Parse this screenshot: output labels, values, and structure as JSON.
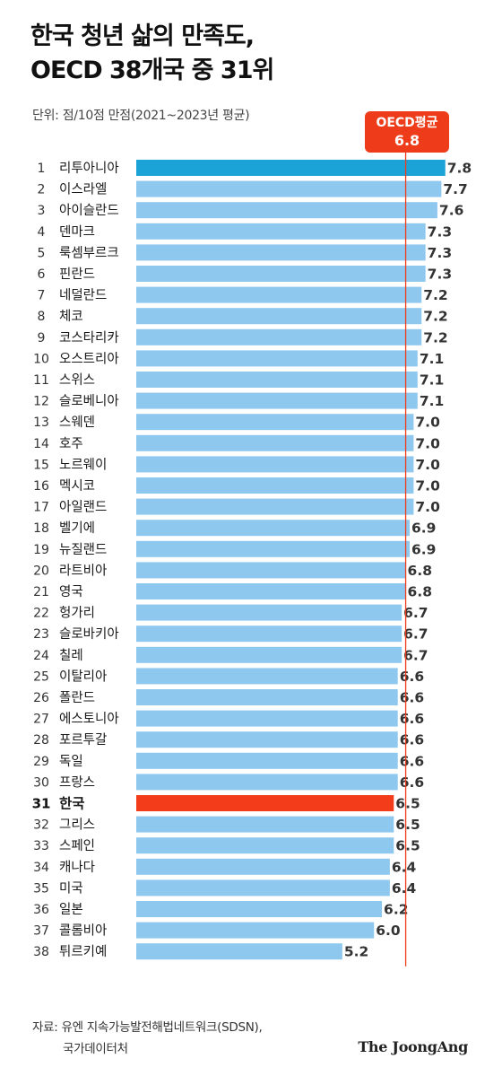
{
  "title": {
    "line1": "한국 청년 삶의 만족도,",
    "line2": "OECD 38개국 중 31위"
  },
  "unit_note": "단위: 점/10점 만점(2021~2023년 평균)",
  "average_badge": {
    "label": "OECD평균",
    "value": "6.8"
  },
  "source": {
    "line1": "자료: 유엔 지속가능발전해법네트워크(SDSN),",
    "line2": "국가데이터처"
  },
  "brand": "The JoongAng",
  "colors": {
    "bar": "#8fc8ef",
    "top_bar": "#1ba3d7",
    "highlight_bar": "#f23c1a",
    "average_line": "#ee3c1a"
  },
  "chart_data": {
    "type": "bar",
    "orientation": "horizontal",
    "average": 6.8,
    "highlight": "한국",
    "categories": [
      "리투아니아",
      "이스라엘",
      "아이슬란드",
      "덴마크",
      "룩셈부르크",
      "핀란드",
      "네덜란드",
      "체코",
      "코스타리카",
      "오스트리아",
      "스위스",
      "슬로베니아",
      "스웨덴",
      "호주",
      "노르웨이",
      "멕시코",
      "아일랜드",
      "벨기에",
      "뉴질랜드",
      "라트비아",
      "영국",
      "헝가리",
      "슬로바키아",
      "칠레",
      "이탈리아",
      "폴란드",
      "에스토니아",
      "포르투갈",
      "독일",
      "프랑스",
      "한국",
      "그리스",
      "스페인",
      "캐나다",
      "미국",
      "일본",
      "콜롬비아",
      "튀르키예"
    ],
    "ranks": [
      "1",
      "2",
      "3",
      "4",
      "5",
      "6",
      "7",
      "8",
      "9",
      "10",
      "11",
      "12",
      "13",
      "14",
      "15",
      "16",
      "17",
      "18",
      "19",
      "20",
      "21",
      "22",
      "23",
      "24",
      "25",
      "26",
      "27",
      "28",
      "29",
      "30",
      "31",
      "32",
      "33",
      "34",
      "35",
      "36",
      "37",
      "38"
    ],
    "values": [
      7.8,
      7.7,
      7.6,
      7.3,
      7.3,
      7.3,
      7.2,
      7.2,
      7.2,
      7.1,
      7.1,
      7.1,
      7.0,
      7.0,
      7.0,
      7.0,
      7.0,
      6.9,
      6.9,
      6.8,
      6.8,
      6.7,
      6.7,
      6.7,
      6.6,
      6.6,
      6.6,
      6.6,
      6.6,
      6.6,
      6.5,
      6.5,
      6.5,
      6.4,
      6.4,
      6.2,
      6.0,
      5.2
    ],
    "value_labels": [
      "7.8",
      "7.7",
      "7.6",
      "7.3",
      "7.3",
      "7.3",
      "7.2",
      "7.2",
      "7.2",
      "7.1",
      "7.1",
      "7.1",
      "7.0",
      "7.0",
      "7.0",
      "7.0",
      "7.0",
      "6.9",
      "6.9",
      "6.8",
      "6.8",
      "6.7",
      "6.7",
      "6.7",
      "6.6",
      "6.6",
      "6.6",
      "6.6",
      "6.6",
      "6.6",
      "6.5",
      "6.5",
      "6.5",
      "6.4",
      "6.4",
      "6.2",
      "6.0",
      "5.2"
    ]
  }
}
